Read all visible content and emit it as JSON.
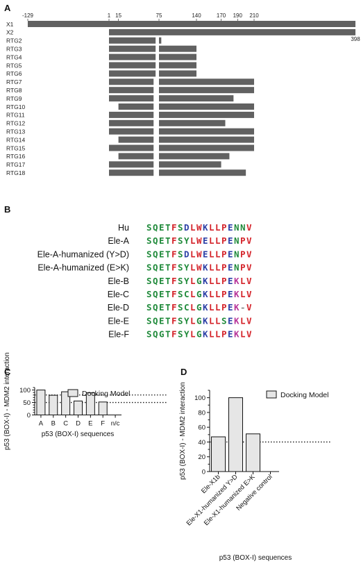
{
  "panels": {
    "a": "A",
    "b": "B",
    "c": "C",
    "d": "D"
  },
  "panel_a": {
    "positions": [
      -129,
      1,
      15,
      75,
      140,
      170,
      190,
      210
    ],
    "position_labels": [
      "-129",
      "1",
      "15",
      "75",
      "140",
      "170",
      "190",
      "210"
    ],
    "end_label": "398",
    "end_value": 398,
    "rows": [
      {
        "name": "X1",
        "segments": [
          [
            -129,
            398
          ]
        ]
      },
      {
        "name": "X2",
        "segments": [
          [
            1,
            398
          ]
        ]
      },
      {
        "name": "RTG2",
        "segments": [
          [
            1,
            70
          ],
          [
            75,
            79
          ]
        ]
      },
      {
        "name": "RTG3",
        "segments": [
          [
            1,
            70
          ],
          [
            75,
            140
          ]
        ]
      },
      {
        "name": "RTG4",
        "segments": [
          [
            1,
            70
          ],
          [
            75,
            140
          ]
        ]
      },
      {
        "name": "RTG5",
        "segments": [
          [
            1,
            70
          ],
          [
            75,
            140
          ]
        ]
      },
      {
        "name": "RTG6",
        "segments": [
          [
            1,
            70
          ],
          [
            75,
            140
          ]
        ]
      },
      {
        "name": "RTG7",
        "segments": [
          [
            1,
            67
          ],
          [
            75,
            210
          ]
        ]
      },
      {
        "name": "RTG8",
        "segments": [
          [
            1,
            67
          ],
          [
            75,
            210
          ]
        ]
      },
      {
        "name": "RTG9",
        "segments": [
          [
            1,
            67
          ],
          [
            75,
            185
          ]
        ]
      },
      {
        "name": "RTG10",
        "segments": [
          [
            15,
            67
          ],
          [
            75,
            210
          ]
        ]
      },
      {
        "name": "RTG11",
        "segments": [
          [
            1,
            67
          ],
          [
            75,
            210
          ]
        ]
      },
      {
        "name": "RTG12",
        "segments": [
          [
            1,
            67
          ],
          [
            75,
            175
          ]
        ]
      },
      {
        "name": "RTG13",
        "segments": [
          [
            1,
            67
          ],
          [
            75,
            210
          ]
        ]
      },
      {
        "name": "RTG14",
        "segments": [
          [
            15,
            67
          ],
          [
            75,
            210
          ]
        ]
      },
      {
        "name": "RTG15",
        "segments": [
          [
            1,
            67
          ],
          [
            75,
            210
          ]
        ]
      },
      {
        "name": "RTG16",
        "segments": [
          [
            15,
            67
          ],
          [
            75,
            180
          ]
        ]
      },
      {
        "name": "RTG17",
        "segments": [
          [
            1,
            67
          ],
          [
            75,
            170
          ]
        ]
      },
      {
        "name": "RTG18",
        "segments": [
          [
            1,
            67
          ],
          [
            75,
            200
          ]
        ]
      }
    ]
  },
  "panel_b": {
    "colors": {
      "green": "#1f8a3a",
      "blue": "#2b3fa6",
      "red": "#d4232a",
      "magenta": "#b8369a",
      "grey": "#888888"
    },
    "rows": [
      {
        "name": "Hu",
        "seq": "SQETFSDLWKLLPENNV",
        "colors": "ggggrgbrrbrrrbggr"
      },
      {
        "name": "Ele-A",
        "seq": "SQETFSYLWELLPENPV",
        "colors": "ggggrggrrbrrrbgrr"
      },
      {
        "name": "Ele-A-humanized (Y>D)",
        "seq": "SQETFSDLWELLPENPV",
        "colors": "ggggrgbrrbrrrbgrr"
      },
      {
        "name": "Ele-A-humanized (E>K)",
        "seq": "SQETFSYLWKLLPENPV",
        "colors": "ggggrggrrbrrrbgrr"
      },
      {
        "name": "Ele-B",
        "seq": "SQETFSYLGKLLPEKLV",
        "colors": "ggggrggrgbrrrbmrr"
      },
      {
        "name": "Ele-C",
        "seq": "SQETFSCLGKLLPEKLV",
        "colors": "ggggrggrgbrrrbmrr"
      },
      {
        "name": "Ele-D",
        "seq": "SQETFSCLGKLLPEK-V",
        "colors": "ggggrggrgbrrrbmnr"
      },
      {
        "name": "Ele-E",
        "seq": "SQETFSYLGKLLSEKLV",
        "colors": "ggggrggrgbrrgbmrr"
      },
      {
        "name": "Ele-F",
        "seq": "SQGTFSYLGKLLPEKLV",
        "colors": "gggtrggrgbrrrbmrr"
      }
    ]
  },
  "chart_data": [
    {
      "type": "bar",
      "panel": "C",
      "categories": [
        "A",
        "B",
        "C",
        "D",
        "E",
        "F",
        "n/c"
      ],
      "series": [
        {
          "name": "Docking Model",
          "values": [
            100,
            79,
            93,
            56,
            89,
            52,
            0
          ]
        }
      ],
      "xlabel": "p53 (BOX-I) sequences",
      "ylabel": "p53 (BOX-I) - MDM2 interaction",
      "ylim": [
        0,
        110
      ],
      "yticks": [
        0,
        50,
        100
      ],
      "reference_lines": [
        80,
        50
      ],
      "legend": "top-right",
      "bar_color": "#e6e6e6"
    },
    {
      "type": "bar",
      "panel": "D",
      "categories": [
        "Ele-X1b",
        "Ele-X1-humanized Y>D",
        "Ele-X1-humanized E>K",
        "Negative control"
      ],
      "series": [
        {
          "name": "Docking Model",
          "values": [
            47,
            100,
            51,
            0
          ]
        }
      ],
      "xlabel": "p53 (BOX-I) sequences",
      "ylabel": "p53 (BOX-I) - MDM2 interaction",
      "ylim": [
        0,
        110
      ],
      "yticks": [
        0,
        20,
        40,
        60,
        80,
        100
      ],
      "reference_lines": [
        40
      ],
      "legend": "top-right",
      "bar_color": "#e6e6e6"
    }
  ]
}
